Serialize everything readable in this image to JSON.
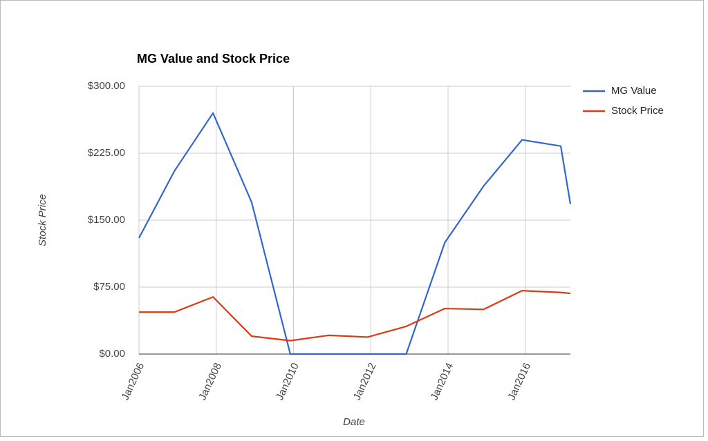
{
  "chart_data": {
    "type": "line",
    "title": "MG Value and Stock Price",
    "x_label": "Date",
    "y_label": "Stock Price",
    "x": [
      "2006-01",
      "2006-12",
      "2007-12",
      "2008-12",
      "2009-12",
      "2010-12",
      "2011-12",
      "2012-12",
      "2013-12",
      "2014-12",
      "2015-12",
      "2016-12",
      "2017-03"
    ],
    "series": [
      {
        "name": "MG Value",
        "color": "#3366cc",
        "values": [
          130,
          205,
          270,
          170,
          0,
          0,
          0,
          0,
          125,
          188,
          240,
          233,
          168
        ]
      },
      {
        "name": "Stock Price",
        "color": "#dc3912",
        "values": [
          47,
          47,
          64,
          20,
          15,
          21,
          19,
          31,
          51,
          50,
          71,
          69,
          68
        ]
      }
    ],
    "xlim": [
      "2006-01",
      "2017-03"
    ],
    "xticks": [
      {
        "value": "2006-01",
        "label": "Jan2006"
      },
      {
        "value": "2008-01",
        "label": "Jan2008"
      },
      {
        "value": "2010-01",
        "label": "Jan2010"
      },
      {
        "value": "2012-01",
        "label": "Jan2012"
      },
      {
        "value": "2014-01",
        "label": "Jan2014"
      },
      {
        "value": "2016-01",
        "label": "Jan2016"
      }
    ],
    "ylim": [
      0,
      300
    ],
    "yticks": [
      {
        "value": 0,
        "label": "$0.00"
      },
      {
        "value": 75,
        "label": "$75.00"
      },
      {
        "value": 150,
        "label": "$150.00"
      },
      {
        "value": 225,
        "label": "$225.00"
      },
      {
        "value": 300,
        "label": "$300.00"
      }
    ],
    "grid": true,
    "legend": "right"
  }
}
